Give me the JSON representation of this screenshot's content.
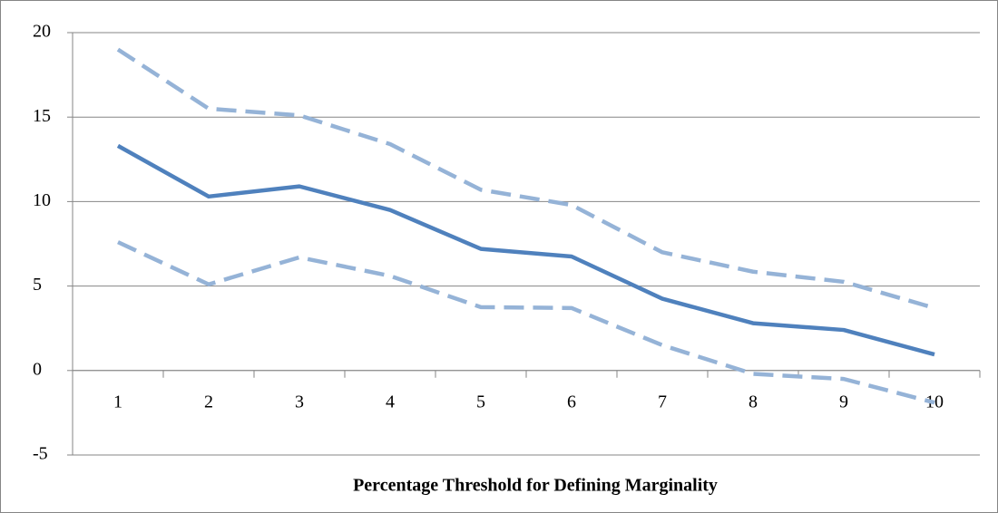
{
  "chart_data": {
    "type": "line",
    "x_label": "Percentage Threshold for Defining Marginality",
    "categories": [
      "1",
      "2",
      "3",
      "4",
      "5",
      "6",
      "7",
      "8",
      "9",
      "10"
    ],
    "series": [
      {
        "color": "#95b3d7",
        "dashed": true,
        "values": [
          19.0,
          15.5,
          15.1,
          13.4,
          10.7,
          9.8,
          7.0,
          5.85,
          5.25,
          3.7
        ]
      },
      {
        "color": "#4f81bd",
        "dashed": false,
        "values": [
          13.3,
          10.3,
          10.9,
          9.5,
          7.2,
          6.75,
          4.25,
          2.8,
          2.4,
          0.95
        ]
      },
      {
        "color": "#95b3d7",
        "dashed": true,
        "values": [
          7.6,
          5.1,
          6.7,
          5.6,
          3.75,
          3.7,
          1.5,
          -0.2,
          -0.5,
          -1.9
        ]
      }
    ],
    "ylim": [
      -5,
      20
    ],
    "yticks": [
      -5,
      0,
      5,
      10,
      15,
      20
    ],
    "grid": true
  }
}
